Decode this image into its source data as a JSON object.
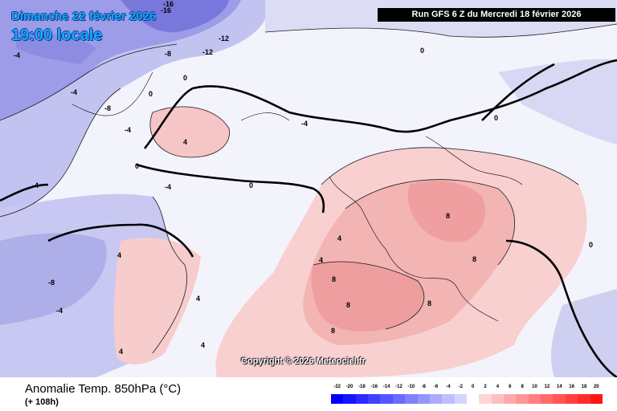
{
  "header": {
    "date_line": "Dimanche 22 février 2026",
    "time_line": "19:00 locale",
    "run_info": "Run GFS 6 Z du Mercredi 18 février 2026"
  },
  "footer": {
    "title": "Anomalie Temp. 850hPa (°C)",
    "lead_time": "(+ 108h)",
    "copyright": "Copyright © 2026 Meteociel.fr"
  },
  "legend": {
    "ticks": [
      "-22",
      "-20",
      "-18",
      "-16",
      "-14",
      "-12",
      "-10",
      "-8",
      "-6",
      "-4",
      "-2",
      "0",
      "2",
      "4",
      "6",
      "8",
      "10",
      "12",
      "14",
      "16",
      "18",
      "20"
    ],
    "colors": [
      "#0000ff",
      "#1515ff",
      "#2b2bff",
      "#4040ff",
      "#5555ff",
      "#6a6aff",
      "#8080ff",
      "#9595ff",
      "#aaaaff",
      "#bfbfff",
      "#d5d5ff",
      "#ffffff",
      "#ffd5d5",
      "#ffbfbf",
      "#ffaaaa",
      "#ff9595",
      "#ff8080",
      "#ff6a6a",
      "#ff5555",
      "#ff4040",
      "#ff2b2b",
      "#ff1515"
    ]
  },
  "contour_labels": [
    {
      "text": "-16"
    },
    {
      "text": "-16"
    },
    {
      "text": "-12"
    },
    {
      "text": "-12"
    },
    {
      "text": "-8"
    },
    {
      "text": "-8"
    },
    {
      "text": "-8"
    },
    {
      "text": "-4"
    },
    {
      "text": "-4"
    },
    {
      "text": "-4"
    },
    {
      "text": "-4"
    },
    {
      "text": "-4"
    },
    {
      "text": "-4"
    },
    {
      "text": "-4"
    },
    {
      "text": "0"
    },
    {
      "text": "0"
    },
    {
      "text": "0"
    },
    {
      "text": "0"
    },
    {
      "text": "0"
    },
    {
      "text": "0"
    },
    {
      "text": "0"
    },
    {
      "text": "4"
    },
    {
      "text": "4"
    },
    {
      "text": "4"
    },
    {
      "text": "4"
    },
    {
      "text": "4"
    },
    {
      "text": "4"
    },
    {
      "text": "4"
    },
    {
      "text": "8"
    },
    {
      "text": "8"
    },
    {
      "text": "8"
    },
    {
      "text": "8"
    },
    {
      "text": "8"
    },
    {
      "text": "8"
    }
  ]
}
